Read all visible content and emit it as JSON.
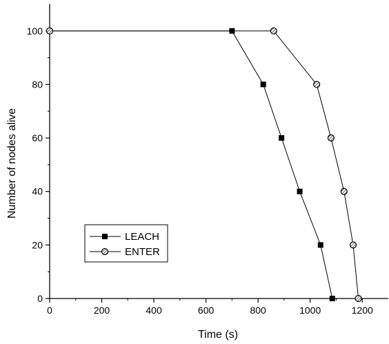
{
  "chart_data": {
    "type": "line",
    "title": "",
    "xlabel": "Time (s)",
    "ylabel": "Number of nodes alive",
    "xlim": [
      0,
      1300
    ],
    "ylim": [
      0,
      110
    ],
    "xticks": [
      0,
      200,
      400,
      600,
      800,
      1000,
      1200
    ],
    "yticks": [
      0,
      20,
      40,
      60,
      80,
      100
    ],
    "grid": false,
    "legend_position": "lower-left",
    "series": [
      {
        "name": "LEACH",
        "marker": "filled-square",
        "color": "#000000",
        "x": [
          0,
          700,
          820,
          890,
          960,
          1040,
          1085
        ],
        "y": [
          100,
          100,
          80,
          60,
          40,
          20,
          0
        ]
      },
      {
        "name": "ENTER",
        "marker": "hatched-circle",
        "color": "#000000",
        "x": [
          0,
          860,
          1025,
          1080,
          1130,
          1165,
          1185
        ],
        "y": [
          100,
          100,
          80,
          60,
          40,
          20,
          0
        ]
      }
    ]
  }
}
